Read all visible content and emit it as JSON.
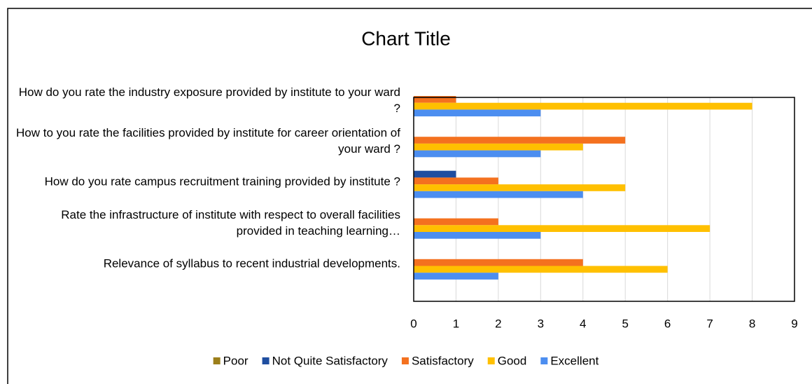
{
  "chart_data": {
    "type": "hbar",
    "title": "Chart Title",
    "categories": [
      "How do you rate the industry exposure provided by institute to your ward ?",
      "How to you rate the facilities provided by institute for career orientation of your ward ?",
      "How do you rate campus recruitment training provided by institute ?",
      "Rate the infrastructure of institute with respect to overall facilities provided in teaching learning…",
      "Relevance of syllabus to recent industrial developments."
    ],
    "series": [
      {
        "name": "Poor",
        "color": "#9c7f1a",
        "values": [
          0,
          0,
          0,
          0,
          0
        ]
      },
      {
        "name": "Not Quite Satisfactory",
        "color": "#1f4ea0",
        "values": [
          0,
          0,
          1,
          0,
          0
        ]
      },
      {
        "name": "Satisfactory",
        "color": "#f4711f",
        "values": [
          1,
          5,
          2,
          2,
          4
        ]
      },
      {
        "name": "Good",
        "color": "#ffc000",
        "values": [
          8,
          4,
          5,
          7,
          6
        ]
      },
      {
        "name": "Excellent",
        "color": "#4c8ef0",
        "values": [
          3,
          3,
          4,
          3,
          2
        ]
      }
    ],
    "xlim": [
      0,
      9
    ],
    "xticks": [
      0,
      1,
      2,
      3,
      4,
      5,
      6,
      7,
      8,
      9
    ],
    "grid": true,
    "legend": "bottom"
  }
}
